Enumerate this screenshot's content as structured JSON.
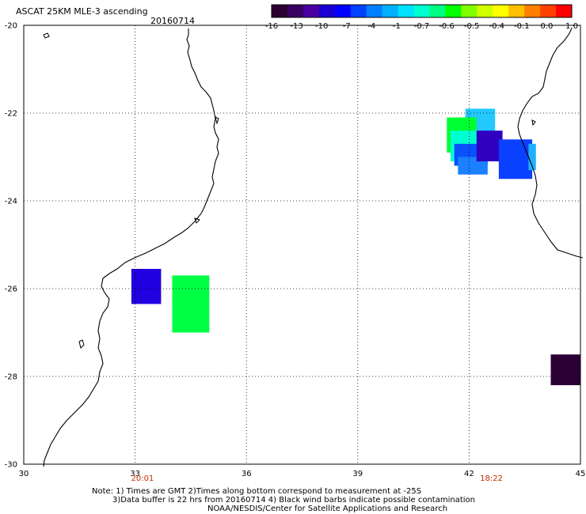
{
  "header": {
    "title": "ASCAT 25KM MLE-3 ascending",
    "date": "20160714"
  },
  "colorbar": {
    "colors": [
      "#2a0030",
      "#3a0060",
      "#4a00a0",
      "#1a00d0",
      "#0000ff",
      "#0040ff",
      "#0080ff",
      "#00b0ff",
      "#00e0ff",
      "#00ffd0",
      "#00ff80",
      "#00ff00",
      "#80ff00",
      "#d0ff00",
      "#ffff00",
      "#ffc000",
      "#ff8000",
      "#ff4000",
      "#ff0000"
    ],
    "labels": [
      "-16",
      "-13",
      "-10",
      "-7",
      "-4",
      "-1",
      "-0.7",
      "-0.6",
      "-0.5",
      "-0.4",
      "-0.1",
      "0.0",
      "1.0"
    ]
  },
  "axes": {
    "x_ticks": [
      "30",
      "33",
      "36",
      "39",
      "42",
      "45"
    ],
    "y_ticks": [
      "-20",
      "-22",
      "-24",
      "-26",
      "-28",
      "-30"
    ],
    "x_range": [
      30,
      45
    ],
    "y_range": [
      -30,
      -20
    ],
    "grid": true
  },
  "time_labels": [
    {
      "text": "20:01",
      "lon": 33.2
    },
    {
      "text": "18:22",
      "lon": 42.6
    }
  ],
  "swaths": [
    {
      "lon0": 32.9,
      "lon1": 33.7,
      "lat0": -25.55,
      "lat1": -26.35,
      "color": "#2200e0"
    },
    {
      "lon0": 34.0,
      "lon1": 35.0,
      "lat0": -25.7,
      "lat1": -27.0,
      "color": "#00ff44"
    },
    {
      "lon0": 41.6,
      "lon1": 42.3,
      "lat0": -22.1,
      "lat1": -22.6,
      "color": "#1a70ff"
    },
    {
      "lon0": 41.9,
      "lon1": 42.7,
      "lat0": -21.9,
      "lat1": -22.6,
      "color": "#22c8ff"
    },
    {
      "lon0": 41.4,
      "lon1": 42.2,
      "lat0": -22.1,
      "lat1": -22.9,
      "color": "#00ff30"
    },
    {
      "lon0": 41.5,
      "lon1": 42.3,
      "lat0": -22.4,
      "lat1": -23.1,
      "color": "#00ffd0"
    },
    {
      "lon0": 41.6,
      "lon1": 42.5,
      "lat0": -22.7,
      "lat1": -23.2,
      "color": "#0a50ff"
    },
    {
      "lon0": 41.7,
      "lon1": 42.5,
      "lat0": -23.0,
      "lat1": -23.4,
      "color": "#1a80ff"
    },
    {
      "lon0": 42.2,
      "lon1": 42.9,
      "lat0": -22.4,
      "lat1": -23.1,
      "color": "#3000c0"
    },
    {
      "lon0": 42.8,
      "lon1": 43.7,
      "lat0": -22.6,
      "lat1": -23.5,
      "color": "#0a40ff"
    },
    {
      "lon0": 43.6,
      "lon1": 43.8,
      "lat0": -22.7,
      "lat1": -23.3,
      "color": "#20b0ff"
    },
    {
      "lon0": 44.2,
      "lon1": 45.0,
      "lat0": -27.5,
      "lat1": -28.2,
      "color": "#2a0035"
    }
  ],
  "footer": {
    "line1": "Note: 1) Times are GMT 2)Times along bottom correspond to measurement at -25S",
    "line2": "3)Data buffer is 22 hrs from 20160714 4) Black wind barbs indicate possible contamination",
    "line3": "NOAA/NESDIS/Center for Satellite Applications and Research"
  }
}
